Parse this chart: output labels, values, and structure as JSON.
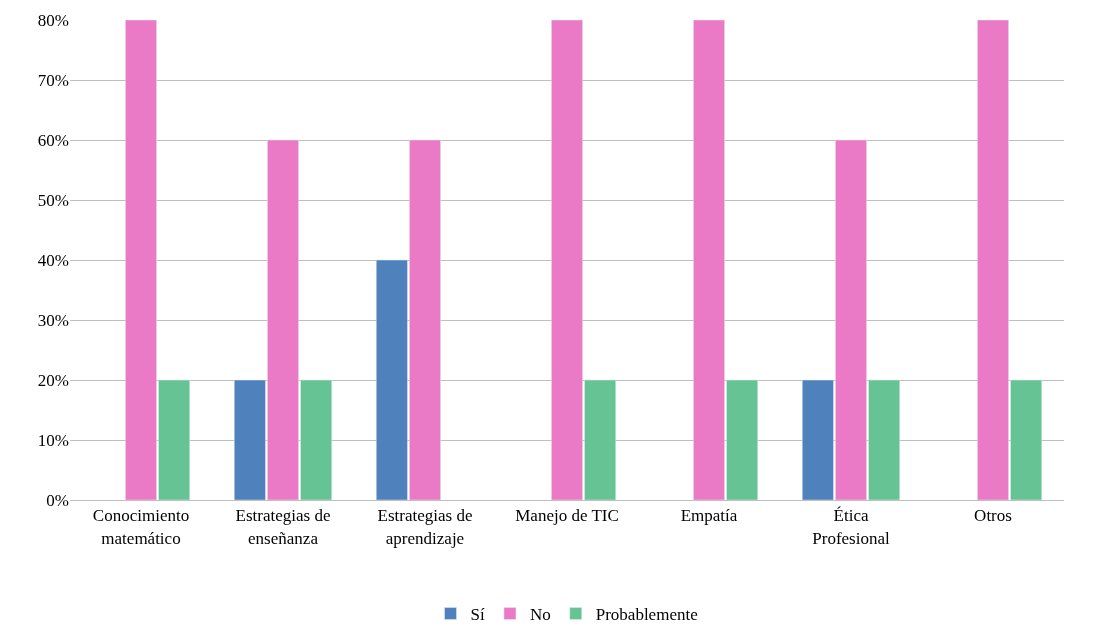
{
  "chart_data": {
    "type": "bar",
    "categories": [
      "Conocimiento matemático",
      "Estrategias de enseñanza",
      "Estrategias de aprendizaje",
      "Manejo de TIC",
      "Empatía",
      "Ética Profesional",
      "Otros"
    ],
    "series": [
      {
        "name": "Sí",
        "color": "#4f81bd",
        "values": [
          null,
          20,
          40,
          null,
          null,
          20,
          null
        ]
      },
      {
        "name": "No",
        "color": "#ea7ac6",
        "values": [
          80,
          60,
          60,
          80,
          80,
          60,
          80
        ]
      },
      {
        "name": "Probablemente",
        "color": "#66c494",
        "values": [
          20,
          20,
          null,
          20,
          20,
          20,
          20
        ]
      }
    ],
    "ylim": [
      0,
      80
    ],
    "yticks": [
      {
        "value": 0,
        "label": "0%"
      },
      {
        "value": 10,
        "label": "10%"
      },
      {
        "value": 20,
        "label": "20%"
      },
      {
        "value": 30,
        "label": "30%"
      },
      {
        "value": 40,
        "label": "40%"
      },
      {
        "value": 50,
        "label": "50%"
      },
      {
        "value": 60,
        "label": "60%"
      },
      {
        "value": 70,
        "label": "70%"
      },
      {
        "value": 80,
        "label": "80%"
      }
    ],
    "grid": "y",
    "legend": "bottom"
  }
}
